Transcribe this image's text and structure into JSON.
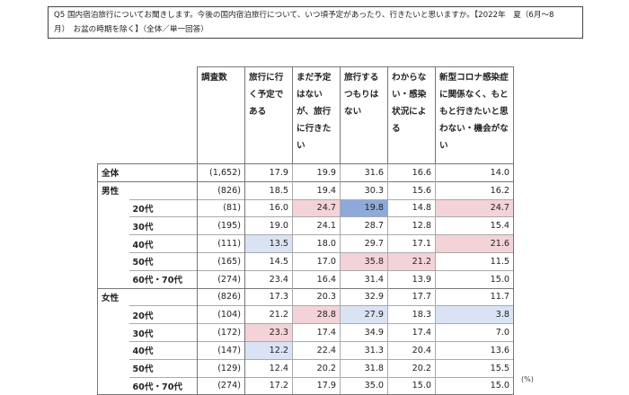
{
  "question": {
    "line1": "Q5 国内宿泊旅行についてお聞きします。今後の国内宿泊旅行について、いつ頃予定があったり、行きたいと思いますか。【2022年　夏（6月〜8",
    "line2": "月）　お盆の時期を除く】（全体／単一回答）"
  },
  "headers": {
    "n": "調査数",
    "c1": "旅行に行く予定である",
    "c2": "まだ予定はないが、旅行に行きたい",
    "c3": "旅行するつもりはない",
    "c4": "わからない・感染状況による",
    "c5": "新型コロナ感染症に関係なく、もともと行きたいと思わない・機会がない"
  },
  "rows": [
    {
      "g": "全体",
      "s": "",
      "n": "(1,652)",
      "v": [
        "17.9",
        "19.9",
        "31.6",
        "16.6",
        "14.0"
      ]
    },
    {
      "g": "男性",
      "s": "",
      "n": "(826)",
      "v": [
        "18.5",
        "19.4",
        "30.3",
        "15.6",
        "16.2"
      ]
    },
    {
      "g": "",
      "s": "20代",
      "n": "(81)",
      "v": [
        "16.0",
        "24.7",
        "19.8",
        "14.8",
        "24.7"
      ]
    },
    {
      "g": "",
      "s": "30代",
      "n": "(195)",
      "v": [
        "19.0",
        "24.1",
        "28.7",
        "12.8",
        "15.4"
      ]
    },
    {
      "g": "",
      "s": "40代",
      "n": "(111)",
      "v": [
        "13.5",
        "18.0",
        "29.7",
        "17.1",
        "21.6"
      ]
    },
    {
      "g": "",
      "s": "50代",
      "n": "(165)",
      "v": [
        "14.5",
        "17.0",
        "35.8",
        "21.2",
        "11.5"
      ]
    },
    {
      "g": "",
      "s": "60代・70代",
      "n": "(274)",
      "v": [
        "23.4",
        "16.4",
        "31.4",
        "13.9",
        "15.0"
      ]
    },
    {
      "g": "女性",
      "s": "",
      "n": "(826)",
      "v": [
        "17.3",
        "20.3",
        "32.9",
        "17.7",
        "11.7"
      ]
    },
    {
      "g": "",
      "s": "20代",
      "n": "(104)",
      "v": [
        "21.2",
        "28.8",
        "27.9",
        "18.3",
        "3.8"
      ]
    },
    {
      "g": "",
      "s": "30代",
      "n": "(172)",
      "v": [
        "23.3",
        "17.4",
        "34.9",
        "17.4",
        "7.0"
      ]
    },
    {
      "g": "",
      "s": "40代",
      "n": "(147)",
      "v": [
        "12.2",
        "22.4",
        "31.3",
        "20.4",
        "13.6"
      ]
    },
    {
      "g": "",
      "s": "50代",
      "n": "(129)",
      "v": [
        "12.4",
        "20.2",
        "31.8",
        "20.2",
        "15.5"
      ]
    },
    {
      "g": "",
      "s": "60代・70代",
      "n": "(274)",
      "v": [
        "17.2",
        "17.9",
        "35.0",
        "15.0",
        "15.0"
      ]
    }
  ],
  "highlight_colors": {
    "high": "#f3d3d8",
    "highest": "#8eaadb",
    "low": "#dae3f3"
  },
  "unit": "(%)"
}
